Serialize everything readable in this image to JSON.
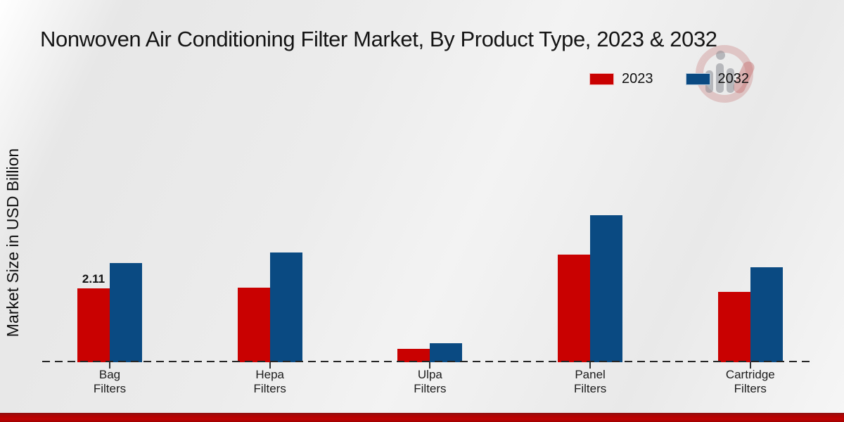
{
  "header": {
    "title": "Nonwoven Air Conditioning Filter Market, By Product Type, 2023 & 2032"
  },
  "legend": {
    "position": "top-right",
    "items": [
      {
        "label": "2023",
        "color": "#c90101"
      },
      {
        "label": "2032",
        "color": "#0a4a82"
      }
    ]
  },
  "icons": {
    "watermark": "magnifier-bar-chart-brand-logo"
  },
  "colors": {
    "series_2023": "#c90101",
    "series_2032": "#0a4a82",
    "background": "#ebebeb",
    "bottom_accent_bar": "#b30202",
    "axis": "#262626"
  },
  "chart_data": {
    "type": "bar",
    "title": "Nonwoven Air Conditioning Filter Market, By Product Type, 2023 & 2032",
    "ylabel": "Market Size in USD Billion",
    "xlabel": "",
    "categories": [
      "Bag Filters",
      "Hepa Filters",
      "Ulpa Filters",
      "Panel Filters",
      "Cartridge Filters"
    ],
    "series": [
      {
        "name": "2023",
        "color": "#c90101",
        "values": [
          2.11,
          2.13,
          0.38,
          3.08,
          2.01
        ]
      },
      {
        "name": "2032",
        "color": "#0a4a82",
        "values": [
          2.85,
          3.14,
          0.54,
          4.21,
          2.73
        ]
      }
    ],
    "data_labels": [
      {
        "series": "2023",
        "category": "Bag Filters",
        "text": "2.11"
      }
    ],
    "ylim": [
      0,
      7.5
    ],
    "grid": false,
    "legend_position": "top-right",
    "baseline_style": "dashed",
    "y_ticks_visible": false
  }
}
